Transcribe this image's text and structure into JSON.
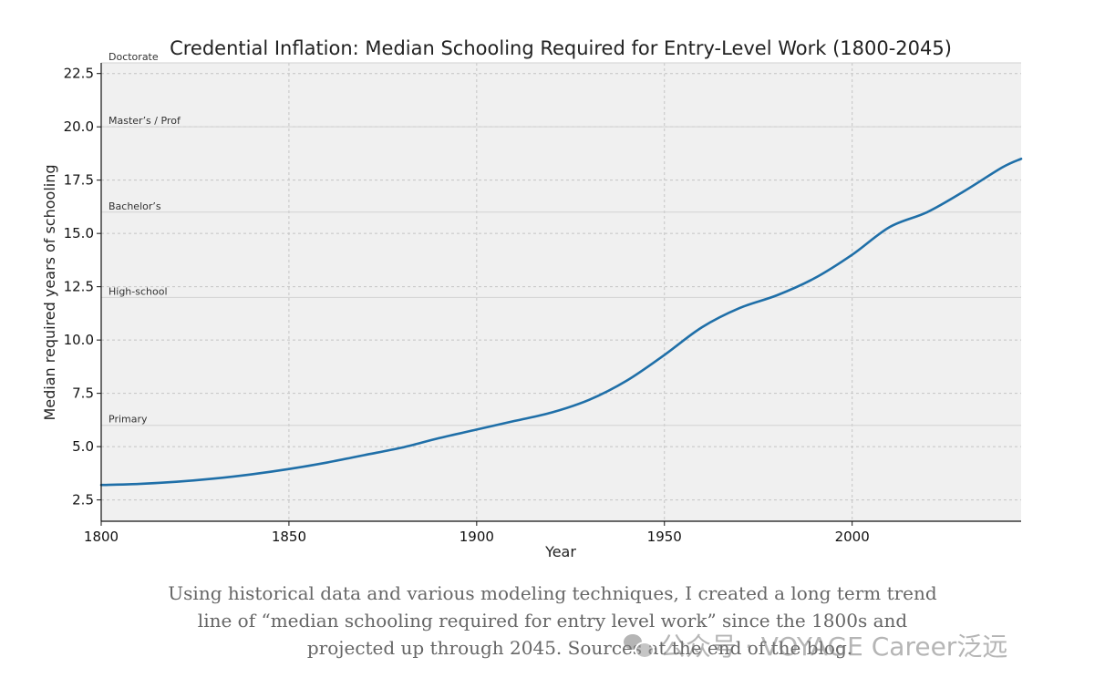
{
  "chart_data": {
    "type": "line",
    "title": "Credential Inflation: Median Schooling Required for Entry-Level Work (1800-2045)",
    "xlabel": "Year",
    "ylabel": "Median required years of schooling",
    "xlim": [
      1800,
      2045
    ],
    "ylim": [
      1.5,
      23
    ],
    "xticks": [
      1800,
      1850,
      1900,
      1950,
      2000
    ],
    "xtick_labels": [
      "1800",
      "1850",
      "1900",
      "1950",
      "2000"
    ],
    "yticks": [
      2.5,
      5.0,
      7.5,
      10.0,
      12.5,
      15.0,
      17.5,
      20.0,
      22.5
    ],
    "ytick_labels": [
      "2.5",
      "5.0",
      "7.5",
      "10.0",
      "12.5",
      "15.0",
      "17.5",
      "20.0",
      "22.5"
    ],
    "grid": true,
    "line_color": "#1f6fa8",
    "series": [
      {
        "x": [
          1800,
          1810,
          1820,
          1830,
          1840,
          1850,
          1860,
          1870,
          1880,
          1890,
          1900,
          1910,
          1920,
          1930,
          1940,
          1950,
          1960,
          1970,
          1980,
          1990,
          2000,
          2010,
          2020,
          2030,
          2040,
          2045
        ],
        "values": [
          3.2,
          3.25,
          3.35,
          3.5,
          3.7,
          3.95,
          4.25,
          4.6,
          4.95,
          5.4,
          5.8,
          6.2,
          6.6,
          7.2,
          8.1,
          9.3,
          10.6,
          11.5,
          12.1,
          12.9,
          14.0,
          15.3,
          16.0,
          17.0,
          18.1,
          18.5
        ]
      }
    ],
    "reference_levels": [
      {
        "label": "Primary",
        "y": 6
      },
      {
        "label": "High-school",
        "y": 12
      },
      {
        "label": "Bachelor’s",
        "y": 16
      },
      {
        "label": "Master’s / Prof",
        "y": 20
      },
      {
        "label": "Doctorate",
        "y": 23
      }
    ]
  },
  "caption": {
    "line1": "Using historical data and various modeling techniques, I created a long term trend",
    "line2": "line of “median schooling required for entry level work” since the 1800s and",
    "line3": "projected up through 2045. Sources at the end of the blog."
  },
  "watermark": {
    "text": "公众号 · VOYAGE Career泛远",
    "icon": "wechat-logo"
  }
}
